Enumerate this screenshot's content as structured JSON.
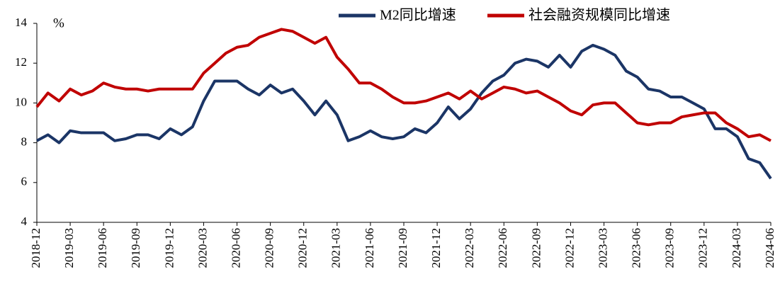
{
  "chart_data": {
    "type": "line",
    "y_unit": "%",
    "categories": [
      "2018-12",
      null,
      null,
      "2019-03",
      null,
      null,
      "2019-06",
      null,
      null,
      "2019-09",
      null,
      null,
      "2019-12",
      null,
      null,
      "2020-03",
      null,
      null,
      "2020-06",
      null,
      null,
      "2020-09",
      null,
      null,
      "2020-12",
      null,
      null,
      "2021-03",
      null,
      null,
      "2021-06",
      null,
      null,
      "2021-09",
      null,
      null,
      "2021-12",
      null,
      null,
      "2022-03",
      null,
      null,
      "2022-06",
      null,
      null,
      "2022-09",
      null,
      null,
      "2022-12",
      null,
      null,
      "2023-03",
      null,
      null,
      "2023-06",
      null,
      null,
      "2023-09",
      null,
      null,
      "2023-12",
      null,
      null,
      "2024-03",
      null,
      null,
      "2024-06"
    ],
    "series": [
      {
        "name": "M2同比增速",
        "color": "#1b3566",
        "values": [
          8.1,
          8.4,
          8.0,
          8.6,
          8.5,
          8.5,
          8.5,
          8.1,
          8.2,
          8.4,
          8.4,
          8.2,
          8.7,
          8.4,
          8.8,
          10.1,
          11.1,
          11.1,
          11.1,
          10.7,
          10.4,
          10.9,
          10.5,
          10.7,
          10.1,
          9.4,
          10.1,
          9.4,
          8.1,
          8.3,
          8.6,
          8.3,
          8.2,
          8.3,
          8.7,
          8.5,
          9.0,
          9.8,
          9.2,
          9.7,
          10.5,
          11.1,
          11.4,
          12.0,
          12.2,
          12.1,
          11.8,
          12.4,
          11.8,
          12.6,
          12.9,
          12.7,
          12.4,
          11.6,
          11.3,
          10.7,
          10.6,
          10.3,
          10.3,
          10.0,
          9.7,
          8.7,
          8.7,
          8.3,
          7.2,
          7.0,
          6.2
        ]
      },
      {
        "name": "社会融资规模同比增速",
        "color": "#c00000",
        "values": [
          9.8,
          10.5,
          10.1,
          10.7,
          10.4,
          10.6,
          11.0,
          10.8,
          10.7,
          10.7,
          10.6,
          10.7,
          10.7,
          10.7,
          10.7,
          11.5,
          12.0,
          12.5,
          12.8,
          12.9,
          13.3,
          13.5,
          13.7,
          13.6,
          13.3,
          13.0,
          13.3,
          12.3,
          11.7,
          11.0,
          11.0,
          10.7,
          10.3,
          10.0,
          10.0,
          10.1,
          10.3,
          10.5,
          10.2,
          10.6,
          10.2,
          10.5,
          10.8,
          10.7,
          10.5,
          10.6,
          10.3,
          10.0,
          9.6,
          9.4,
          9.9,
          10.0,
          10.0,
          9.5,
          9.0,
          8.9,
          9.0,
          9.0,
          9.3,
          9.4,
          9.5,
          9.5,
          9.0,
          8.7,
          8.3,
          8.4,
          8.1
        ]
      }
    ],
    "ylim": [
      4,
      14
    ],
    "yticks": [
      4,
      6,
      8,
      10,
      12,
      14
    ],
    "grid": false,
    "legend": "top-right"
  }
}
